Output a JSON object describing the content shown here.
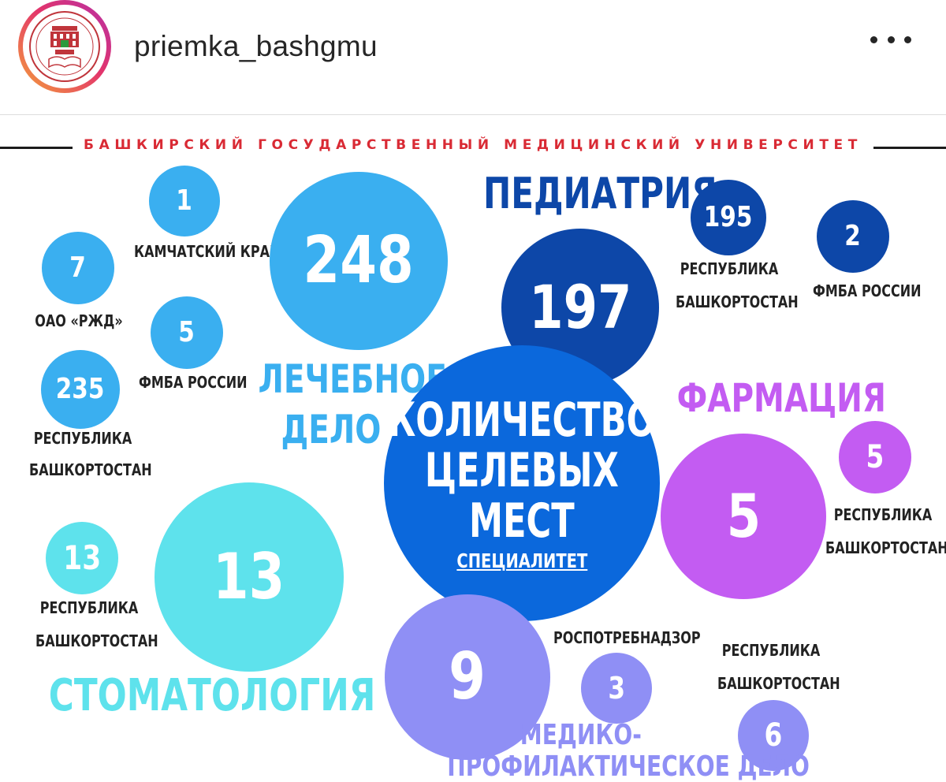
{
  "header": {
    "username": "priemka_bashgmu",
    "more_icon": "more-horizontal-icon",
    "ring_colors": [
      "#f4a23a",
      "#e3356b",
      "#b52fa8"
    ]
  },
  "post": {
    "university_title": "БАШКИРСКИЙ ГОСУДАРСТВЕННЫЙ МЕДИЦИНСКИЙ УНИВЕРСИТЕТ",
    "center": {
      "lines": [
        "КОЛИЧЕСТВО",
        "ЦЕЛЕВЫХ",
        "МЕСТ"
      ],
      "subtitle": "СПЕЦИАЛИТЕТ",
      "color": "#0b68dc"
    },
    "lechebnoe": {
      "name_line1": "ЛЕЧЕБНОЕ",
      "name_line2": "ДЕЛО",
      "total": "248",
      "color": "#3aaff0",
      "items": [
        {
          "value": "1",
          "label": "КАМЧАТСКИЙ КРАЙ"
        },
        {
          "value": "7",
          "label": "ОАО «РЖД»"
        },
        {
          "value": "5",
          "label": "ФМБА РОССИИ"
        },
        {
          "value": "235",
          "label_line1": "РЕСПУБЛИКА",
          "label_line2": "БАШКОРТОСТАН"
        }
      ]
    },
    "pediatria": {
      "name": "ПЕДИАТРИЯ",
      "total": "197",
      "color": "#0d47a8",
      "items": [
        {
          "value": "195",
          "label_line1": "РЕСПУБЛИКА",
          "label_line2": "БАШКОРТОСТАН"
        },
        {
          "value": "2",
          "label": "ФМБА РОССИИ"
        }
      ]
    },
    "farmacia": {
      "name": "ФАРМАЦИЯ",
      "total": "5",
      "color": "#c35cf2",
      "items": [
        {
          "value": "5",
          "label_line1": "РЕСПУБЛИКА",
          "label_line2": "БАШКОРТОСТАН"
        }
      ]
    },
    "stomatologia": {
      "name": "СТОМАТОЛОГИЯ",
      "total": "13",
      "color": "#5ee2ec",
      "items": [
        {
          "value": "13",
          "label_line1": "РЕСПУБЛИКА",
          "label_line2": "БАШКОРТОСТАН"
        }
      ]
    },
    "mpd": {
      "name_line1": "МЕДИКО-",
      "name_line2": "ПРОФИЛАКТИЧЕСКОЕ ДЕЛО",
      "total": "9",
      "color": "#8f8ff5",
      "items": [
        {
          "value": "3",
          "label": "РОСПОТРЕБНАДЗОР"
        },
        {
          "value": "6",
          "label_line1": "РЕСПУБЛИКА",
          "label_line2": "БАШКОРТОСТАН"
        }
      ]
    }
  }
}
